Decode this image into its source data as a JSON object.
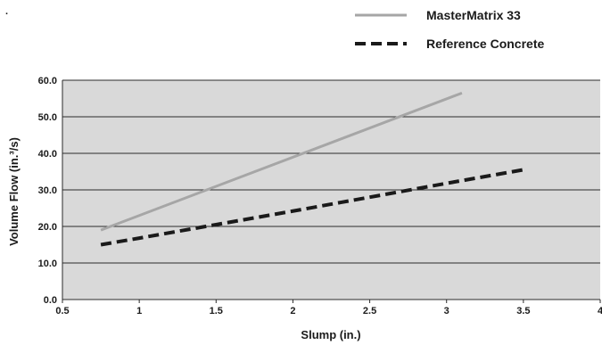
{
  "chart_data": {
    "type": "line",
    "title": "",
    "xlabel": "Slump (in.)",
    "ylabel": "Volume Flow (in.³/s)",
    "xlim": [
      0.5,
      4
    ],
    "ylim": [
      0,
      60
    ],
    "x_ticks": [
      "0.5",
      "1",
      "1.5",
      "2",
      "2.5",
      "3",
      "3.5",
      "4"
    ],
    "y_ticks": [
      "0.0",
      "10.0",
      "20.0",
      "30.0",
      "40.0",
      "50.0",
      "60.0"
    ],
    "grid": "horizontal",
    "legend_position": "top-right",
    "plot_background": "#d9d9d9",
    "series": [
      {
        "name": "MasterMatrix 33",
        "style": "solid",
        "color": "#a6a6a6",
        "x": [
          0.75,
          3.1
        ],
        "y": [
          19,
          56.5
        ]
      },
      {
        "name": "Reference Concrete",
        "style": "dashed",
        "color": "#1a1a1a",
        "x": [
          0.75,
          1.0,
          1.5,
          2.0,
          2.5,
          3.0,
          3.5
        ],
        "y": [
          15,
          16.8,
          20.5,
          24.2,
          28,
          31.8,
          35.5
        ]
      }
    ]
  }
}
